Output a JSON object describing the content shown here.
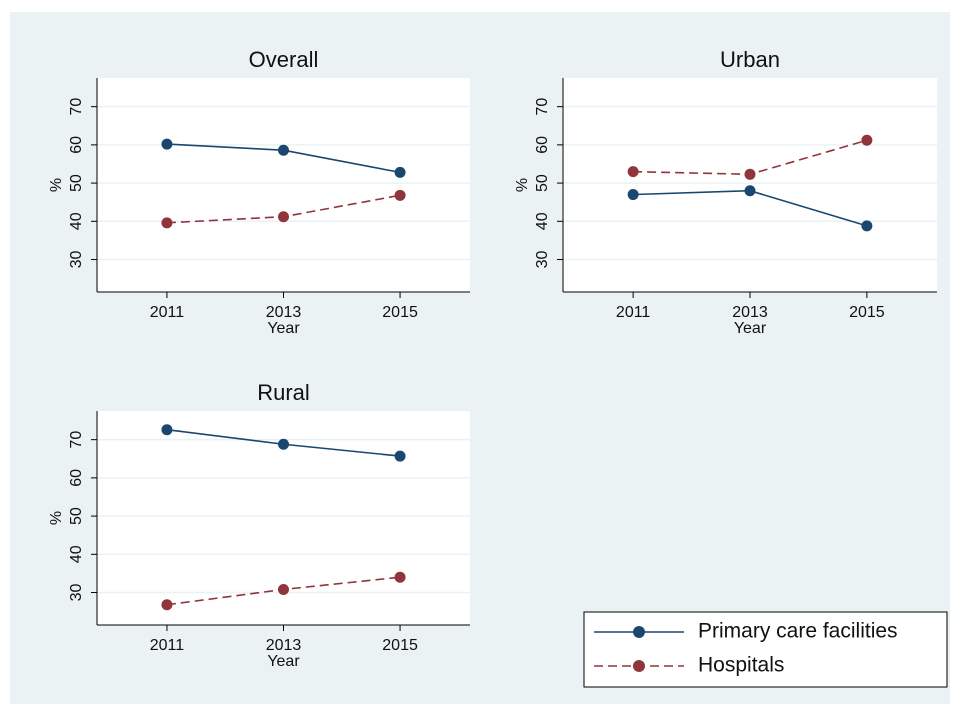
{
  "chart_data": [
    {
      "type": "line",
      "title": "Overall",
      "x_label": "Year",
      "y_label": "%",
      "x": [
        2011,
        2013,
        2015
      ],
      "xlim": [
        2009.8,
        2016.2
      ],
      "xticks": [
        2011,
        2013,
        2015
      ],
      "ylim": [
        21.5,
        77.5
      ],
      "yticks": [
        30,
        40,
        50,
        60,
        70
      ],
      "grid": true,
      "series": [
        {
          "color": "#1a476f",
          "dash": false,
          "values": [
            60.2,
            58.6,
            52.8
          ]
        },
        {
          "color": "#90353b",
          "dash": true,
          "values": [
            39.6,
            41.2,
            46.8
          ]
        }
      ]
    },
    {
      "type": "line",
      "title": "Urban",
      "x_label": "Year",
      "y_label": "%",
      "x": [
        2011,
        2013,
        2015
      ],
      "xlim": [
        2009.8,
        2016.2
      ],
      "xticks": [
        2011,
        2013,
        2015
      ],
      "ylim": [
        21.5,
        77.5
      ],
      "yticks": [
        30,
        40,
        50,
        60,
        70
      ],
      "grid": true,
      "series": [
        {
          "color": "#1a476f",
          "dash": false,
          "values": [
            47,
            48,
            38.8
          ]
        },
        {
          "color": "#90353b",
          "dash": true,
          "values": [
            53,
            52.3,
            61.2
          ]
        }
      ]
    },
    {
      "type": "line",
      "title": "Rural",
      "x_label": "Year",
      "y_label": "%",
      "x": [
        2011,
        2013,
        2015
      ],
      "xlim": [
        2009.8,
        2016.2
      ],
      "xticks": [
        2011,
        2013,
        2015
      ],
      "ylim": [
        21.5,
        77.5
      ],
      "yticks": [
        30,
        40,
        50,
        60,
        70
      ],
      "grid": true,
      "series": [
        {
          "color": "#1a476f",
          "dash": false,
          "values": [
            72.6,
            68.8,
            65.7
          ]
        },
        {
          "color": "#90353b",
          "dash": true,
          "values": [
            26.8,
            30.8,
            34
          ]
        }
      ]
    }
  ],
  "legend": {
    "position": "bottom-right",
    "entries": [
      {
        "name": "Primary care facilities",
        "color": "#1a476f",
        "dash": false
      },
      {
        "name": "Hospitals",
        "color": "#90353b",
        "dash": true
      }
    ]
  }
}
